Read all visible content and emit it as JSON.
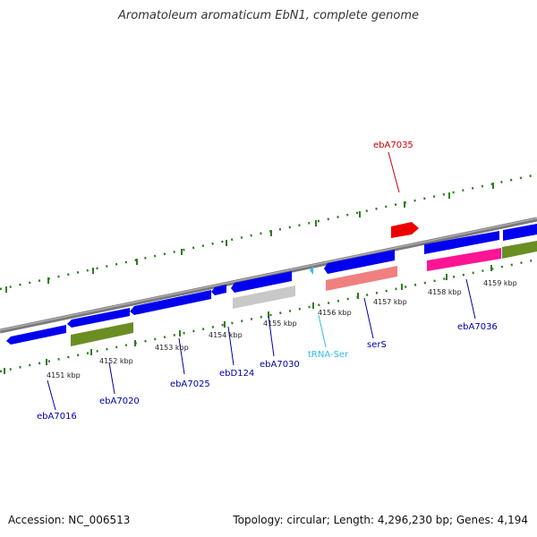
{
  "title": "Aromatoleum aromaticum EbN1, complete genome",
  "footer": {
    "accession": "Accession: NC_006513",
    "stats": "Topology: circular; Length: 4,296,230 bp; Genes: 4,194"
  },
  "kbp_labels": [
    "4151 kbp",
    "4152 kbp",
    "4153 kbp",
    "4154 kbp",
    "4155 kbp",
    "4156 kbp",
    "4157 kbp",
    "4158 kbp",
    "4159 kbp"
  ],
  "colors": {
    "backbone": "#808080",
    "ruler": "#2e7d1e",
    "cds": "#0000ee",
    "gene_green": "#6b8e23",
    "gene_gray": "#c8c8c8",
    "gene_salmon": "#f08080",
    "gene_pink": "#ff1493",
    "gene_red": "#ff0000",
    "trna": "#33bbee"
  },
  "gene_labels": [
    {
      "id": "ebA7035",
      "color": "#cc0000"
    },
    {
      "id": "ebA7016",
      "color": "#0000aa"
    },
    {
      "id": "ebA7020",
      "color": "#0000aa"
    },
    {
      "id": "ebA7025",
      "color": "#0000aa"
    },
    {
      "id": "ebD124",
      "color": "#0000aa"
    },
    {
      "id": "ebA7030",
      "color": "#0000aa"
    },
    {
      "id": "tRNA-Ser",
      "color": "#33bbee"
    },
    {
      "id": "serS",
      "color": "#0000aa"
    },
    {
      "id": "ebA7036",
      "color": "#0000aa"
    }
  ]
}
